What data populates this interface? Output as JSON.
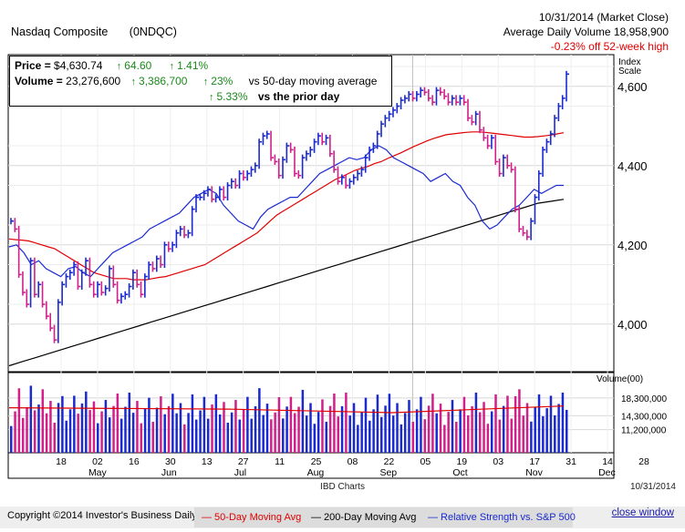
{
  "header": {
    "name": "Nasdaq Composite",
    "symbol": "(0NDQC)",
    "date": "10/31/2014 (Market Close)",
    "avg_volume": "Average Daily Volume 18,958,900",
    "off_high": "-0.23% off 52-week high"
  },
  "info": {
    "price_label": "Price = ",
    "price": "$4,630.74",
    "price_chg": "64.60",
    "price_pct": "1.41%",
    "volume_label": "Volume = ",
    "volume": "23,276,600",
    "vol_chg": "3,386,700",
    "vol_pct_ma": "23%",
    "vol_ma_text": "vs 50-day moving average",
    "vol_pct_prior": "5.33%",
    "vol_prior_text": "vs the prior day"
  },
  "scale_label": [
    "Index",
    "Scale"
  ],
  "footer": {
    "ibd": "IBD Charts",
    "date": "10/31/2014",
    "copyright": "Copyright ©2014 Investor's Business Daily",
    "legend_50": "— 50-Day Moving Avg",
    "legend_200": "— 200-Day Moving Avg",
    "legend_rs": "— Relative Strength vs. S&P 500",
    "close": "close window"
  },
  "colors": {
    "up": "#1a2ad0",
    "down": "#d0208a",
    "ma50": "#e00000",
    "ma200": "#000000",
    "rs": "#1a2ad0",
    "grid": "#d8d8d8"
  },
  "chart_data": {
    "type": "ohlc",
    "title": "Nasdaq Composite",
    "price_ticks": [
      "4,000",
      "4,200",
      "4,400",
      "4,600"
    ],
    "price_tick_values": [
      4000,
      4200,
      4400,
      4600
    ],
    "ylim": [
      3880,
      4680
    ],
    "volume_label": "Volume(00)",
    "volume_ticks": [
      "18,300,000",
      "14,300,000",
      "11,200,000"
    ],
    "volume_tick_values": [
      183000,
      143000,
      112000
    ],
    "volume_ylim": [
      60000,
      240000
    ],
    "day_ticks": [
      "18",
      "02",
      "16",
      "30",
      "13",
      "27",
      "11",
      "25",
      "08",
      "22",
      "05",
      "19",
      "03",
      "17",
      "31",
      "14",
      "28"
    ],
    "month_labels": [
      "May",
      "Jun",
      "Jul",
      "Aug",
      "Sep",
      "Oct",
      "Nov",
      "Dec"
    ],
    "closes": [
      4260,
      4240,
      4125,
      4080,
      4050,
      4160,
      4075,
      4100,
      4050,
      4020,
      3990,
      3960,
      4055,
      4100,
      4120,
      4130,
      4150,
      4095,
      4130,
      4160,
      4100,
      4075,
      4100,
      4080,
      4090,
      4140,
      4100,
      4060,
      4070,
      4075,
      4095,
      4130,
      4100,
      4075,
      4120,
      4150,
      4140,
      4165,
      4150,
      4200,
      4190,
      4200,
      4230,
      4240,
      4225,
      4230,
      4290,
      4320,
      4320,
      4330,
      4340,
      4315,
      4320,
      4340,
      4320,
      4350,
      4360,
      4350,
      4380,
      4370,
      4380,
      4390,
      4400,
      4460,
      4475,
      4480,
      4420,
      4410,
      4375,
      4415,
      4450,
      4440,
      4380,
      4375,
      4420,
      4430,
      4440,
      4460,
      4475,
      4460,
      4470,
      4430,
      4390,
      4360,
      4370,
      4350,
      4360,
      4370,
      4380,
      4390,
      4420,
      4440,
      4450,
      4480,
      4505,
      4520,
      4530,
      4540,
      4550,
      4565,
      4570,
      4580,
      4570,
      4580,
      4590,
      4585,
      4570,
      4560,
      4590,
      4585,
      4575,
      4560,
      4570,
      4560,
      4570,
      4560,
      4520,
      4510,
      4530,
      4490,
      4470,
      4450,
      4470,
      4410,
      4380,
      4420,
      4400,
      4390,
      4290,
      4240,
      4230,
      4220,
      4260,
      4320,
      4380,
      4440,
      4460,
      4480,
      4520,
      4550,
      4570,
      4631
    ],
    "ma50": [
      4215,
      4213,
      4212,
      4210,
      4205,
      4200,
      4195,
      4190,
      4180,
      4170,
      4160,
      4150,
      4140,
      4130,
      4125,
      4120,
      4115,
      4115,
      4115,
      4112,
      4112,
      4112,
      4115,
      4118,
      4120,
      4125,
      4130,
      4135,
      4140,
      4145,
      4150,
      4160,
      4170,
      4180,
      4190,
      4200,
      4210,
      4220,
      4230,
      4245,
      4260,
      4275,
      4285,
      4295,
      4305,
      4315,
      4325,
      4335,
      4345,
      4355,
      4365,
      4372,
      4380,
      4388,
      4393,
      4398,
      4405,
      4410,
      4418,
      4425,
      4432,
      4440,
      4448,
      4455,
      4462,
      4468,
      4473,
      4478,
      4480,
      4482,
      4484,
      4485,
      4485,
      4484,
      4482,
      4480,
      4478,
      4476,
      4474,
      4472,
      4472,
      4473,
      4475,
      4477,
      4480,
      4483
    ],
    "ma200": [
      3895,
      3905,
      3915,
      3925,
      3935,
      3945,
      3955,
      3965,
      3975,
      3985,
      3995,
      4005,
      4015,
      4025,
      4035,
      4045,
      4055,
      4065,
      4075,
      4085,
      4095,
      4105,
      4115,
      4125,
      4135,
      4145,
      4155,
      4165,
      4175,
      4185,
      4195,
      4205,
      4215,
      4225,
      4235,
      4245,
      4255,
      4265,
      4275,
      4285,
      4295,
      4305,
      4310,
      4315
    ],
    "rs": [
      4195,
      4200,
      4180,
      4150,
      4160,
      4140,
      4130,
      4120,
      4140,
      4145,
      4130,
      4120,
      4140,
      4160,
      4180,
      4190,
      4200,
      4210,
      4220,
      4240,
      4250,
      4260,
      4270,
      4280,
      4300,
      4320,
      4330,
      4340,
      4330,
      4300,
      4280,
      4260,
      4250,
      4240,
      4270,
      4290,
      4300,
      4310,
      4320,
      4320,
      4340,
      4360,
      4380,
      4390,
      4400,
      4410,
      4420,
      4415,
      4420,
      4440,
      4450,
      4440,
      4420,
      4410,
      4400,
      4390,
      4380,
      4360,
      4370,
      4380,
      4360,
      4350,
      4320,
      4300,
      4260,
      4240,
      4250,
      4270,
      4290,
      4300,
      4320,
      4340,
      4330,
      4340,
      4350,
      4350
    ]
  }
}
